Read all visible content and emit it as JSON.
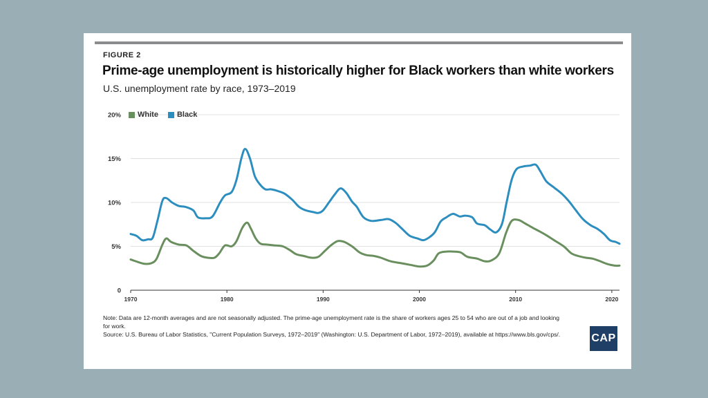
{
  "figure_label": "FIGURE 2",
  "title": "Prime-age unemployment is historically higher for Black workers than white workers",
  "subtitle": "U.S. unemployment rate by race, 1973–2019",
  "logo_text": "CAP",
  "note": "Note: Data are 12-month averages and are not seasonally adjusted. The prime-age unemployment rate is the share of workers ages 25 to 54 who are out of a job and looking for work.",
  "source": "Source: U.S. Bureau of Labor Statistics, \"Current Population Surveys, 1972–2019\" (Washington: U.S. Department of Labor, 1972–2019), available at https://www.bls.gov/cps/.",
  "colors": {
    "white": "#6a8f5e",
    "black": "#2c8dbf",
    "gridline": "#e2e2e2",
    "axis": "#333333"
  },
  "chart_data": {
    "type": "line",
    "title": "Prime-age unemployment is historically higher for Black workers than white workers",
    "xlabel": "",
    "ylabel": "",
    "xlim": [
      1970,
      2020.8
    ],
    "ylim": [
      0,
      20
    ],
    "x_ticks": [
      1970,
      1980,
      1990,
      2000,
      2010,
      2020
    ],
    "y_ticks": [
      {
        "value": 0,
        "label": "0"
      },
      {
        "value": 5,
        "label": "5%"
      },
      {
        "value": 10,
        "label": "10%"
      },
      {
        "value": 15,
        "label": "15%"
      },
      {
        "value": 20,
        "label": "20%"
      }
    ],
    "legend": "top-left",
    "series": [
      {
        "name": "White",
        "points": [
          [
            1970,
            3.5
          ],
          [
            1970.8,
            3.2
          ],
          [
            1971.5,
            3.0
          ],
          [
            1972.2,
            3.1
          ],
          [
            1972.7,
            3.6
          ],
          [
            1973.3,
            5.2
          ],
          [
            1973.7,
            5.9
          ],
          [
            1974.2,
            5.5
          ],
          [
            1975,
            5.2
          ],
          [
            1975.8,
            5.1
          ],
          [
            1976.5,
            4.5
          ],
          [
            1977.3,
            3.9
          ],
          [
            1978,
            3.7
          ],
          [
            1978.7,
            3.7
          ],
          [
            1979.2,
            4.2
          ],
          [
            1979.8,
            5.1
          ],
          [
            1980.5,
            5.0
          ],
          [
            1981,
            5.6
          ],
          [
            1981.6,
            7.1
          ],
          [
            1982.1,
            7.7
          ],
          [
            1982.5,
            7.0
          ],
          [
            1983,
            5.9
          ],
          [
            1983.5,
            5.3
          ],
          [
            1984.2,
            5.2
          ],
          [
            1985,
            5.1
          ],
          [
            1985.8,
            5.0
          ],
          [
            1986.5,
            4.6
          ],
          [
            1987.2,
            4.1
          ],
          [
            1988,
            3.9
          ],
          [
            1988.8,
            3.7
          ],
          [
            1989.5,
            3.8
          ],
          [
            1990.2,
            4.5
          ],
          [
            1990.8,
            5.1
          ],
          [
            1991.5,
            5.6
          ],
          [
            1992.2,
            5.5
          ],
          [
            1993,
            5.0
          ],
          [
            1993.8,
            4.3
          ],
          [
            1994.5,
            4.0
          ],
          [
            1995.3,
            3.9
          ],
          [
            1996,
            3.7
          ],
          [
            1997,
            3.3
          ],
          [
            1998,
            3.1
          ],
          [
            1999,
            2.9
          ],
          [
            2000,
            2.7
          ],
          [
            2000.8,
            2.8
          ],
          [
            2001.5,
            3.4
          ],
          [
            2002,
            4.2
          ],
          [
            2002.8,
            4.4
          ],
          [
            2003.6,
            4.4
          ],
          [
            2004.3,
            4.3
          ],
          [
            2005,
            3.8
          ],
          [
            2006,
            3.6
          ],
          [
            2006.8,
            3.3
          ],
          [
            2007.5,
            3.4
          ],
          [
            2008.3,
            4.2
          ],
          [
            2009,
            6.5
          ],
          [
            2009.6,
            7.9
          ],
          [
            2010.3,
            8.0
          ],
          [
            2011,
            7.6
          ],
          [
            2011.8,
            7.1
          ],
          [
            2012.5,
            6.7
          ],
          [
            2013.3,
            6.2
          ],
          [
            2014,
            5.7
          ],
          [
            2015,
            5.0
          ],
          [
            2015.8,
            4.2
          ],
          [
            2016.5,
            3.9
          ],
          [
            2017.3,
            3.7
          ],
          [
            2018,
            3.6
          ],
          [
            2018.8,
            3.3
          ],
          [
            2019.5,
            3.0
          ],
          [
            2020.3,
            2.8
          ],
          [
            2020.8,
            2.8
          ]
        ]
      },
      {
        "name": "Black",
        "points": [
          [
            1970,
            6.4
          ],
          [
            1970.6,
            6.2
          ],
          [
            1971.2,
            5.7
          ],
          [
            1971.8,
            5.8
          ],
          [
            1972.3,
            6.0
          ],
          [
            1972.8,
            8.0
          ],
          [
            1973.3,
            10.2
          ],
          [
            1973.7,
            10.5
          ],
          [
            1974.3,
            10.0
          ],
          [
            1975,
            9.6
          ],
          [
            1975.7,
            9.5
          ],
          [
            1976.5,
            9.1
          ],
          [
            1977,
            8.3
          ],
          [
            1977.8,
            8.2
          ],
          [
            1978.5,
            8.4
          ],
          [
            1979.3,
            10.0
          ],
          [
            1979.8,
            10.8
          ],
          [
            1980.5,
            11.2
          ],
          [
            1981,
            12.6
          ],
          [
            1981.5,
            15.0
          ],
          [
            1981.9,
            16.1
          ],
          [
            1982.4,
            15.0
          ],
          [
            1982.9,
            13.0
          ],
          [
            1983.4,
            12.1
          ],
          [
            1984,
            11.5
          ],
          [
            1984.6,
            11.5
          ],
          [
            1985.3,
            11.3
          ],
          [
            1986,
            11.0
          ],
          [
            1986.8,
            10.3
          ],
          [
            1987.5,
            9.5
          ],
          [
            1988.2,
            9.1
          ],
          [
            1989,
            8.9
          ],
          [
            1989.5,
            8.8
          ],
          [
            1990,
            9.1
          ],
          [
            1990.6,
            10.0
          ],
          [
            1991.2,
            10.9
          ],
          [
            1991.8,
            11.6
          ],
          [
            1992.4,
            11.1
          ],
          [
            1993,
            10.1
          ],
          [
            1993.5,
            9.5
          ],
          [
            1994.2,
            8.3
          ],
          [
            1995,
            7.9
          ],
          [
            1996,
            8.0
          ],
          [
            1996.8,
            8.1
          ],
          [
            1997.5,
            7.7
          ],
          [
            1998.2,
            7.0
          ],
          [
            1999,
            6.2
          ],
          [
            1999.8,
            5.9
          ],
          [
            2000.4,
            5.7
          ],
          [
            2001,
            6.0
          ],
          [
            2001.6,
            6.6
          ],
          [
            2002.2,
            7.8
          ],
          [
            2002.8,
            8.3
          ],
          [
            2003.5,
            8.7
          ],
          [
            2004.2,
            8.4
          ],
          [
            2004.8,
            8.5
          ],
          [
            2005.5,
            8.3
          ],
          [
            2006,
            7.6
          ],
          [
            2006.8,
            7.4
          ],
          [
            2007.4,
            6.9
          ],
          [
            2008,
            6.6
          ],
          [
            2008.6,
            7.6
          ],
          [
            2009.1,
            10.2
          ],
          [
            2009.6,
            12.6
          ],
          [
            2010.1,
            13.8
          ],
          [
            2010.8,
            14.1
          ],
          [
            2011.5,
            14.2
          ],
          [
            2012.1,
            14.3
          ],
          [
            2012.6,
            13.5
          ],
          [
            2013.2,
            12.4
          ],
          [
            2014,
            11.7
          ],
          [
            2014.8,
            11.0
          ],
          [
            2015.5,
            10.2
          ],
          [
            2016.2,
            9.2
          ],
          [
            2017,
            8.1
          ],
          [
            2017.8,
            7.4
          ],
          [
            2018.5,
            7.0
          ],
          [
            2019.2,
            6.4
          ],
          [
            2019.8,
            5.7
          ],
          [
            2020.4,
            5.5
          ],
          [
            2020.8,
            5.3
          ]
        ]
      }
    ]
  }
}
